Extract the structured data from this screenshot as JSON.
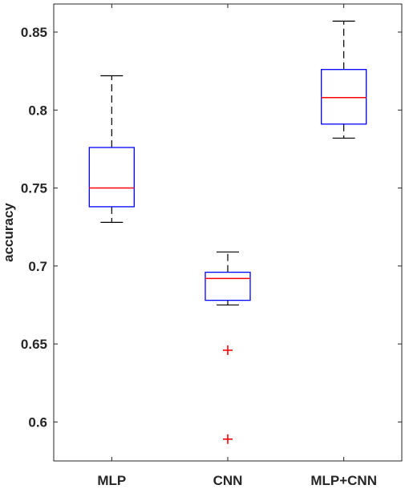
{
  "chart_data": {
    "type": "boxplot",
    "title": "",
    "xlabel": "",
    "ylabel": "accuracy",
    "categories": [
      "MLP",
      "CNN",
      "MLP+CNN"
    ],
    "ylim": [
      0.575,
      0.868
    ],
    "yticks": [
      0.6,
      0.65,
      0.7,
      0.75,
      0.8,
      0.85
    ],
    "ytick_labels": [
      "0.6",
      "0.65",
      "0.7",
      "0.75",
      "0.8",
      "0.85"
    ],
    "grid": false,
    "legend": "none",
    "boxes": [
      {
        "name": "MLP",
        "whisker_low": 0.728,
        "q1": 0.738,
        "median": 0.75,
        "q3": 0.776,
        "whisker_high": 0.822,
        "outliers": []
      },
      {
        "name": "CNN",
        "whisker_low": 0.675,
        "q1": 0.678,
        "median": 0.692,
        "q3": 0.696,
        "whisker_high": 0.709,
        "outliers": [
          0.646,
          0.589
        ]
      },
      {
        "name": "MLP+CNN",
        "whisker_low": 0.782,
        "q1": 0.791,
        "median": 0.808,
        "q3": 0.826,
        "whisker_high": 0.857,
        "outliers": []
      }
    ],
    "colors": {
      "box": "#0000ff",
      "median": "#ff0000",
      "whisker": "#000000",
      "outlier": "#ff0000",
      "axis": "#262626"
    }
  }
}
